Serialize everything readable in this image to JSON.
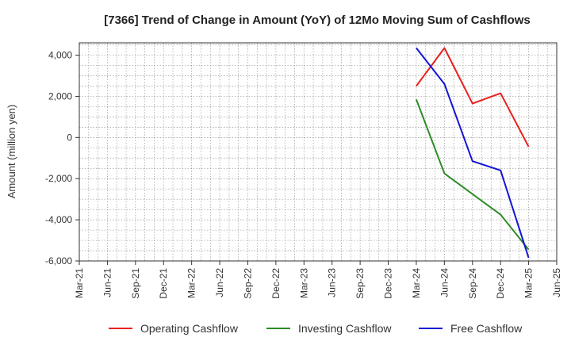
{
  "chart_data": {
    "type": "line",
    "title": "[7366]  Trend of Change in Amount (YoY) of 12Mo Moving Sum of Cashflows",
    "xlabel": "",
    "ylabel": "Amount (million yen)",
    "ylim": [
      -6000,
      4600
    ],
    "yticks": [
      4000,
      2000,
      0,
      -2000,
      -4000,
      -6000
    ],
    "ytick_labels": [
      "4,000",
      "2,000",
      "0",
      "-2,000",
      "-4,000",
      "-6,000"
    ],
    "categories": [
      "Mar-21",
      "Jun-21",
      "Sep-21",
      "Dec-21",
      "Mar-22",
      "Jun-22",
      "Sep-22",
      "Dec-22",
      "Mar-23",
      "Jun-23",
      "Sep-23",
      "Dec-23",
      "Mar-24",
      "Jun-24",
      "Sep-24",
      "Dec-24",
      "Mar-25",
      "Jun-25"
    ],
    "grid": true,
    "legend_position": "bottom",
    "series": [
      {
        "name": "Operating Cashflow",
        "color": "#e8211e",
        "values": [
          null,
          null,
          null,
          null,
          null,
          null,
          null,
          null,
          null,
          null,
          null,
          null,
          2500,
          4350,
          1650,
          2150,
          -450,
          null
        ]
      },
      {
        "name": "Investing Cashflow",
        "color": "#2e8b24",
        "values": [
          null,
          null,
          null,
          null,
          null,
          null,
          null,
          null,
          null,
          null,
          null,
          null,
          1850,
          -1750,
          -2750,
          -3750,
          -5450,
          null
        ]
      },
      {
        "name": "Free Cashflow",
        "color": "#1414d6",
        "values": [
          null,
          null,
          null,
          null,
          null,
          null,
          null,
          null,
          null,
          null,
          null,
          null,
          4350,
          2600,
          -1150,
          -1600,
          -5850,
          null
        ]
      }
    ]
  }
}
